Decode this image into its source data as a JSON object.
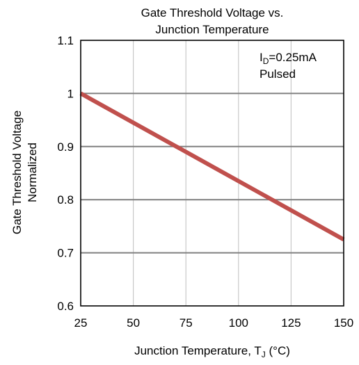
{
  "chart_data": {
    "type": "line",
    "title_line1": "Gate Threshold  Voltage vs.",
    "title_line2": "Junction Temperature",
    "xlabel_main": "Junction Temperature, T",
    "xlabel_sub": "J",
    "xlabel_unit": " (°C)",
    "ylabel_line1": "Gate Threshold  Voltage",
    "ylabel_line2": "Normalized",
    "xlim": [
      25,
      150
    ],
    "ylim": [
      0.6,
      1.1
    ],
    "x_ticks": [
      25,
      50,
      75,
      100,
      125,
      150
    ],
    "x_tick_labels": [
      "25",
      "50",
      "75",
      "100",
      "125",
      "150"
    ],
    "y_ticks": [
      0.6,
      0.7,
      0.8,
      0.9,
      1.0,
      1.1
    ],
    "y_tick_labels": [
      "0.6",
      "0.7",
      "0.8",
      "0.9",
      "1",
      "1.1"
    ],
    "grid": true,
    "series": [
      {
        "x": [
          25,
          150
        ],
        "y": [
          1.0,
          0.725
        ],
        "color": "#c0504d"
      }
    ],
    "annotation": {
      "prefix": "I",
      "sub": "D",
      "rest": "=0.25mA",
      "line2": "Pulsed"
    }
  }
}
